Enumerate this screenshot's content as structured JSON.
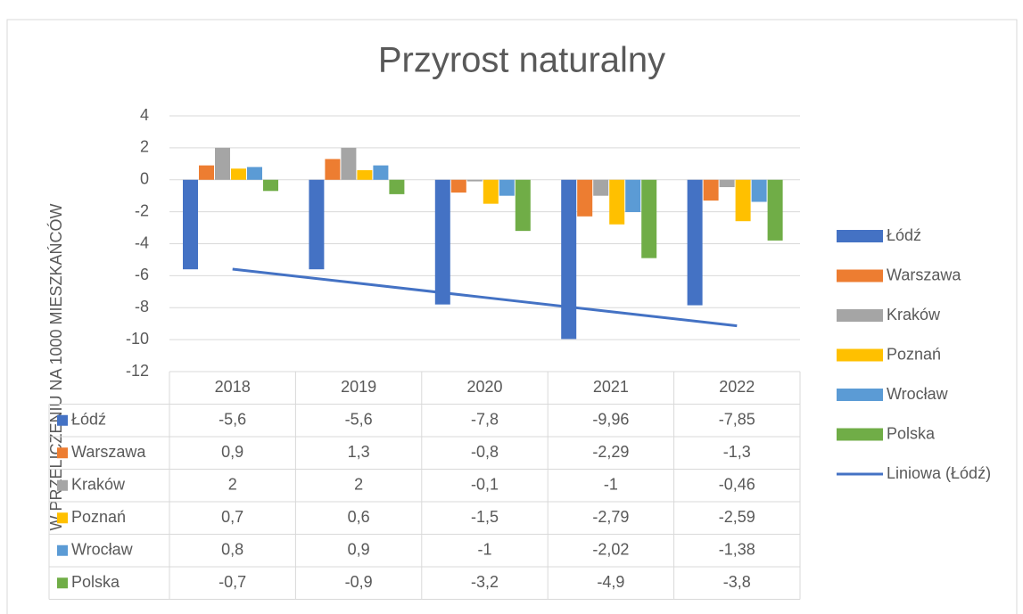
{
  "chart_data": {
    "type": "bar",
    "title": "Przyrost naturalny",
    "y_axis_label": "W PRZELICZENIU NA 1000 MIESZKAŃCÓW",
    "categories": [
      "2018",
      "2019",
      "2020",
      "2021",
      "2022"
    ],
    "series": [
      {
        "name": "Łódź",
        "color": "#4472c4",
        "values": [
          -5.6,
          -5.6,
          -7.8,
          -9.96,
          -7.85
        ],
        "value_labels": [
          "-5,6",
          "-5,6",
          "-7,8",
          "-9,96",
          "-7,85"
        ]
      },
      {
        "name": "Warszawa",
        "color": "#ed7d31",
        "values": [
          0.9,
          1.3,
          -0.8,
          -2.29,
          -1.3
        ],
        "value_labels": [
          "0,9",
          "1,3",
          "-0,8",
          "-2,29",
          "-1,3"
        ]
      },
      {
        "name": "Kraków",
        "color": "#a5a5a5",
        "values": [
          2,
          2,
          -0.1,
          -1,
          -0.46
        ],
        "value_labels": [
          "2",
          "2",
          "-0,1",
          "-1",
          "-0,46"
        ]
      },
      {
        "name": "Poznań",
        "color": "#ffc000",
        "values": [
          0.7,
          0.6,
          -1.5,
          -2.79,
          -2.59
        ],
        "value_labels": [
          "0,7",
          "0,6",
          "-1,5",
          "-2,79",
          "-2,59"
        ]
      },
      {
        "name": "Wrocław",
        "color": "#5b9bd5",
        "values": [
          0.8,
          0.9,
          -1,
          -2.02,
          -1.38
        ],
        "value_labels": [
          "0,8",
          "0,9",
          "-1",
          "-2,02",
          "-1,38"
        ]
      },
      {
        "name": "Polska",
        "color": "#70ad47",
        "values": [
          -0.7,
          -0.9,
          -3.2,
          -4.9,
          -3.8
        ],
        "value_labels": [
          "-0,7",
          "-0,9",
          "-3,2",
          "-4,9",
          "-3,8"
        ]
      }
    ],
    "trendline": {
      "name": "Liniowa (Łódź)",
      "series": 0,
      "kind": "linear",
      "color": "#4472c4"
    },
    "ylim": [
      -12,
      4
    ],
    "yticks": [
      -12,
      -10,
      -8,
      -6,
      -4,
      -2,
      0,
      2,
      4
    ],
    "grid": true,
    "legend": "right",
    "data_table": true
  }
}
